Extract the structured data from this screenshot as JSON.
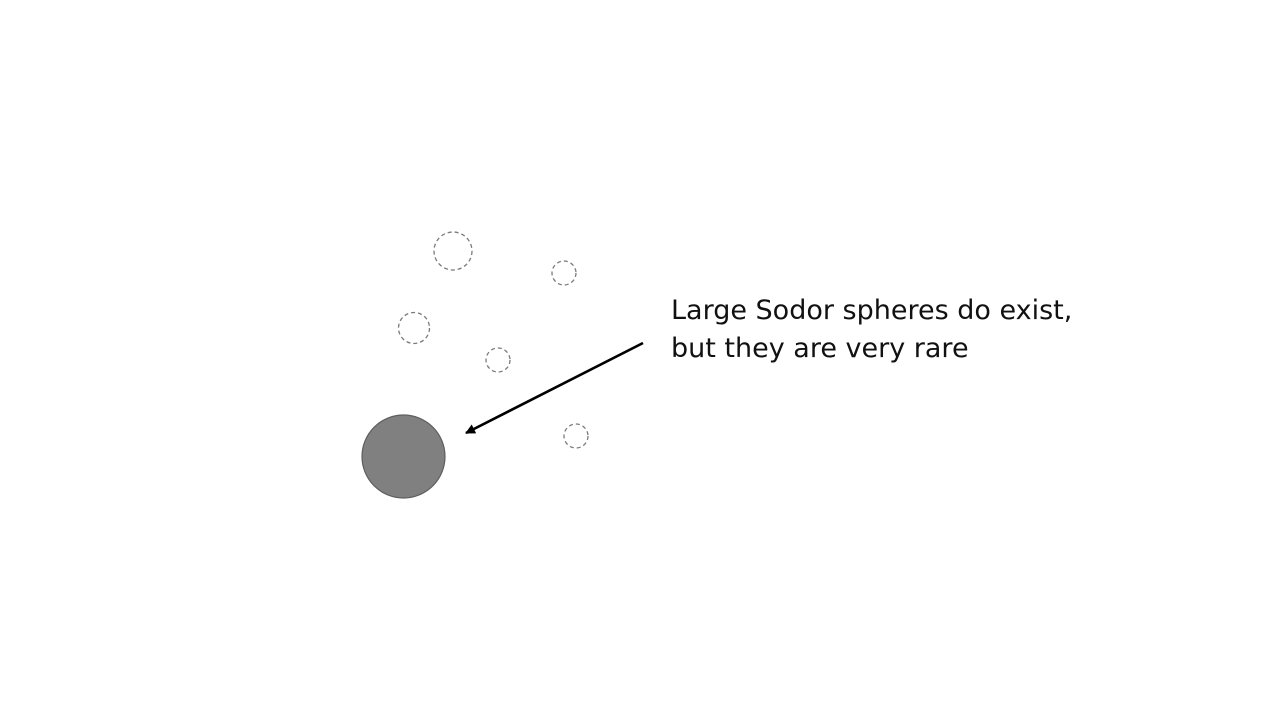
{
  "annotation": {
    "lines": [
      "Large Sodor spheres do exist,",
      "but they are very rare"
    ]
  },
  "colors": {
    "background": "#ffffff",
    "large_sphere_fill": "#808080",
    "large_sphere_stroke": "#5f5f5f",
    "small_sphere_stroke": "#7a7a7a",
    "arrow": "#000000",
    "text": "#111111"
  }
}
